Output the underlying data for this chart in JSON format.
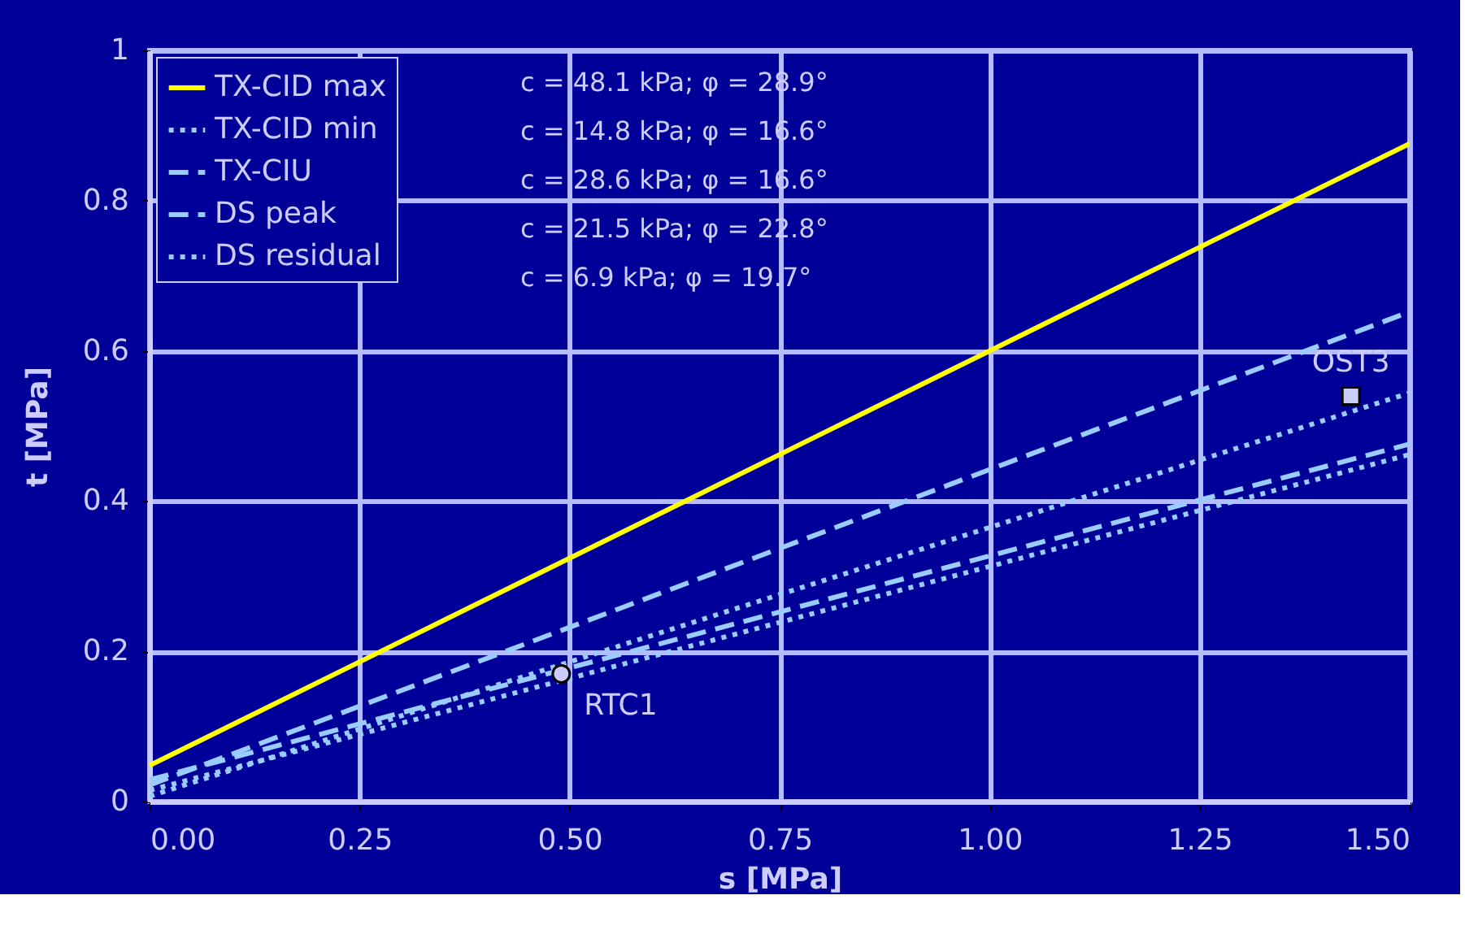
{
  "chart_data": {
    "type": "line",
    "xlabel": "s [MPa]",
    "ylabel": "t [MPa]",
    "xlim": [
      0,
      1.5
    ],
    "ylim": [
      0,
      1
    ],
    "xticks": [
      {
        "value": 0,
        "label": "0.00"
      },
      {
        "value": 0.25,
        "label": "0.25"
      },
      {
        "value": 0.5,
        "label": "0.50"
      },
      {
        "value": 0.75,
        "label": "0.75"
      },
      {
        "value": 1,
        "label": "1.00"
      },
      {
        "value": 1.25,
        "label": "1.25"
      },
      {
        "value": 1.5,
        "label": "1.50"
      }
    ],
    "yticks": [
      0,
      0.2,
      0.4,
      0.6,
      0.8,
      1
    ],
    "grid": true,
    "legend": "top left",
    "series": [
      {
        "name": "TX-CID max",
        "color": "#ffff00",
        "line_style": "solid",
        "x": [
          0,
          1.5
        ],
        "values": [
          0.048,
          0.876
        ]
      },
      {
        "name": "TX-CID min",
        "color": "#99ccff",
        "line_style": "dotted",
        "x": [
          0,
          1.5
        ],
        "values": [
          0.015,
          0.462
        ]
      },
      {
        "name": "TX-CIU",
        "color": "#99ccff",
        "line_style": "dashed",
        "x": [
          0,
          1.5
        ],
        "values": [
          0.029,
          0.476
        ]
      },
      {
        "name": "DS peak",
        "color": "#99ccff",
        "line_style": "dashed",
        "x": [
          0,
          1.5
        ],
        "values": [
          0.022,
          0.652
        ]
      },
      {
        "name": "DS residual",
        "color": "#99ccff",
        "line_style": "dotted",
        "x": [
          0,
          1.5
        ],
        "values": [
          0.007,
          0.544
        ]
      },
      {
        "name": "RTC1",
        "type": "scatter",
        "marker": "circle",
        "color": "#ccccff",
        "x": [
          0.49
        ],
        "values": [
          0.17
        ]
      },
      {
        "name": "OST3",
        "type": "scatter",
        "marker": "square",
        "color": "#ccccff",
        "x": [
          1.43
        ],
        "values": [
          0.54
        ]
      }
    ],
    "annotations": [
      "c = 48.1 kPa; φ = 28.9°",
      "c = 14.8 kPa; φ = 16.6°",
      "c = 28.6 kPa; φ = 16.6°",
      "c = 21.5 kPa; φ = 22.8°",
      "c =   6.9 kPa; φ  = 19.7°"
    ]
  }
}
